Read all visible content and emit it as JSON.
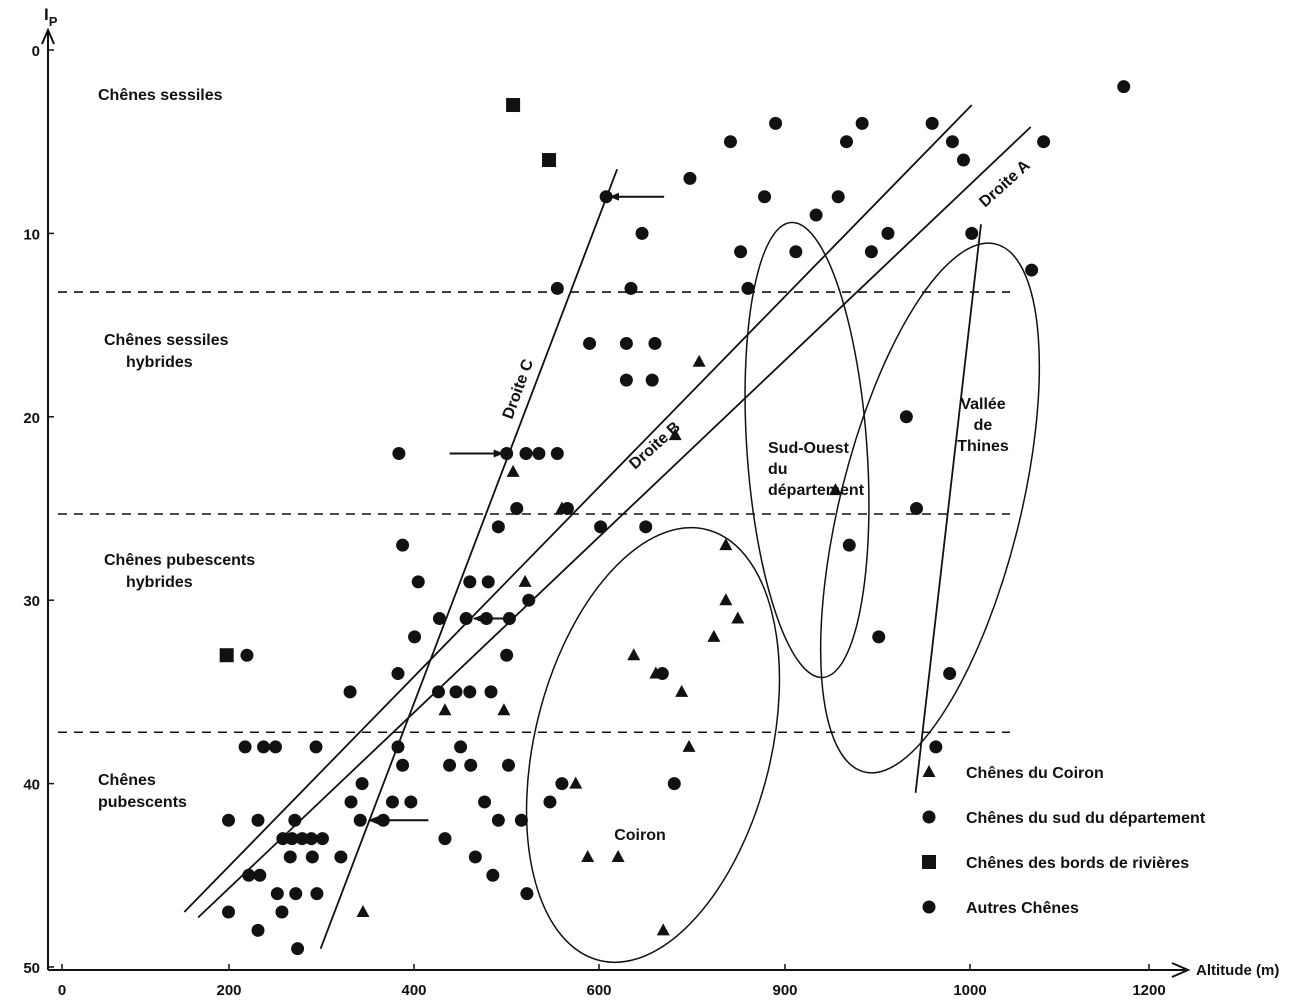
{
  "chart_data": {
    "type": "scatter",
    "xlabel": "Altitude (m)",
    "ylabel": "I",
    "ylabel_sub": "P",
    "x_ticks": [
      "0",
      "200",
      "400",
      "600",
      "900",
      "1000",
      "1200"
    ],
    "y_ticks": [
      "0",
      "10",
      "20",
      "30",
      "40",
      "50"
    ],
    "xlim": [
      0,
      1240
    ],
    "ylim": [
      0,
      50
    ],
    "y_inverted": true,
    "x_axis_spacing": "irregular",
    "zones": [
      {
        "label_lines": [
          "Chênes  sessiles"
        ],
        "upper_boundary": 13.2
      },
      {
        "label_lines": [
          "Chênes  sessiles",
          "hybrides"
        ],
        "upper_boundary": 25.3
      },
      {
        "label_lines": [
          "Chênes  pubescents",
          "hybrides"
        ],
        "upper_boundary": 37.2
      },
      {
        "label_lines": [
          "Chênes",
          "pubescents"
        ],
        "upper_boundary": null
      }
    ],
    "lines": [
      {
        "name": "Droite  A",
        "from": [
          163,
          47.3
        ],
        "to": [
          1067,
          4.2
        ]
      },
      {
        "name": "Droite  B",
        "from": [
          148,
          47.0
        ],
        "to": [
          1003,
          3.0
        ]
      },
      {
        "name": "Droite  C",
        "from": [
          296,
          49.0
        ],
        "to": [
          618,
          6.5
        ]
      },
      {
        "name": "",
        "from": [
          942,
          40.5
        ],
        "to": [
          1013,
          9.5
        ]
      }
    ],
    "regions": [
      {
        "label_lines": [
          "Coiron"
        ]
      },
      {
        "label_lines": [
          "Sud-Ouest",
          "du",
          "département"
        ]
      },
      {
        "label_lines": [
          "Vallée",
          "de",
          "Thines"
        ]
      }
    ],
    "arrows": [
      {
        "tip": [
          606,
          8
        ],
        "tail": [
          669,
          8
        ]
      },
      {
        "tip": [
          498,
          22
        ],
        "tail": [
          436,
          22
        ]
      },
      {
        "tip": [
          458,
          31
        ],
        "tail": [
          500,
          31
        ]
      },
      {
        "tip": [
          344,
          42
        ],
        "tail": [
          413,
          42
        ]
      }
    ],
    "legend": [
      {
        "marker": "triangle",
        "label": "Chênes  du  Coiron"
      },
      {
        "marker": "circle",
        "label": "Chênes  du  sud  du  département"
      },
      {
        "marker": "square",
        "label": "Chênes  des  bords  de  rivières"
      },
      {
        "marker": "circle",
        "label": "Autres  Chênes"
      }
    ],
    "series": [
      {
        "name": "Chênes du Coiron",
        "marker": "triangle",
        "points": [
          [
            505,
            23
          ],
          [
            558,
            25
          ],
          [
            518,
            29
          ],
          [
            431,
            36
          ],
          [
            495,
            36
          ],
          [
            573,
            40
          ],
          [
            586,
            44
          ],
          [
            619,
            44
          ],
          [
            342,
            47
          ],
          [
            668,
            48
          ],
          [
            636,
            33
          ],
          [
            660,
            34
          ],
          [
            688,
            35
          ],
          [
            681,
            21
          ],
          [
            707,
            17
          ],
          [
            736,
            30
          ],
          [
            723,
            32
          ],
          [
            749,
            31
          ],
          [
            696,
            38
          ],
          [
            736,
            27
          ],
          [
            855,
            24
          ]
        ]
      },
      {
        "name": "Chênes des bords de rivières",
        "marker": "square",
        "points": [
          [
            505,
            3
          ],
          [
            544,
            6
          ],
          [
            194,
            33
          ]
        ]
      },
      {
        "name": "Chênes du sud du département",
        "marker": "circle",
        "points": [
          [
            606,
            8
          ],
          [
            645,
            10
          ],
          [
            697,
            7
          ],
          [
            741,
            5
          ],
          [
            790,
            4
          ],
          [
            752,
            11
          ],
          [
            760,
            13
          ],
          [
            778,
            8
          ],
          [
            812,
            11
          ],
          [
            834,
            9
          ],
          [
            912,
            10
          ],
          [
            858,
            8
          ],
          [
            867,
            5
          ],
          [
            884,
            4
          ],
          [
            960,
            4
          ],
          [
            894,
            11
          ],
          [
            982,
            5
          ],
          [
            994,
            6
          ],
          [
            1003,
            10
          ],
          [
            1068,
            12
          ],
          [
            1081,
            5
          ],
          [
            1168,
            2
          ]
        ]
      },
      {
        "name": "Autres Chênes",
        "marker": "circle",
        "points": [
          [
            553,
            13
          ],
          [
            633,
            13
          ],
          [
            588,
            16
          ],
          [
            628,
            16
          ],
          [
            659,
            16
          ],
          [
            628,
            18
          ],
          [
            656,
            18
          ],
          [
            381,
            22
          ],
          [
            498,
            22
          ],
          [
            519,
            22
          ],
          [
            533,
            22
          ],
          [
            553,
            22
          ],
          [
            509,
            25
          ],
          [
            564,
            25
          ],
          [
            489,
            26
          ],
          [
            600,
            26
          ],
          [
            649,
            26
          ],
          [
            385,
            27
          ],
          [
            402,
            29
          ],
          [
            458,
            29
          ],
          [
            478,
            29
          ],
          [
            476,
            31
          ],
          [
            425,
            31
          ],
          [
            454,
            31
          ],
          [
            501,
            31
          ],
          [
            522,
            30
          ],
          [
            398,
            32
          ],
          [
            216,
            33
          ],
          [
            498,
            33
          ],
          [
            380,
            34
          ],
          [
            328,
            35
          ],
          [
            424,
            35
          ],
          [
            443,
            35
          ],
          [
            458,
            35
          ],
          [
            481,
            35
          ],
          [
            214,
            38
          ],
          [
            234,
            38
          ],
          [
            247,
            38
          ],
          [
            291,
            38
          ],
          [
            380,
            38
          ],
          [
            448,
            38
          ],
          [
            385,
            39
          ],
          [
            436,
            39
          ],
          [
            459,
            39
          ],
          [
            500,
            39
          ],
          [
            341,
            40
          ],
          [
            329,
            41
          ],
          [
            374,
            41
          ],
          [
            394,
            41
          ],
          [
            474,
            41
          ],
          [
            545,
            41
          ],
          [
            558,
            40
          ],
          [
            680,
            40
          ],
          [
            339,
            42
          ],
          [
            364,
            42
          ],
          [
            196,
            42
          ],
          [
            228,
            42
          ],
          [
            268,
            42
          ],
          [
            489,
            42
          ],
          [
            514,
            42
          ],
          [
            431,
            43
          ],
          [
            255,
            43
          ],
          [
            265,
            43
          ],
          [
            276,
            43
          ],
          [
            286,
            43
          ],
          [
            298,
            43
          ],
          [
            318,
            44
          ],
          [
            263,
            44
          ],
          [
            287,
            44
          ],
          [
            464,
            44
          ],
          [
            230,
            45
          ],
          [
            218,
            45
          ],
          [
            483,
            45
          ],
          [
            520,
            46
          ],
          [
            249,
            46
          ],
          [
            269,
            46
          ],
          [
            292,
            46
          ],
          [
            254,
            47
          ],
          [
            196,
            47
          ],
          [
            228,
            48
          ],
          [
            271,
            49
          ],
          [
            667,
            34
          ],
          [
            870,
            27
          ],
          [
            902,
            32
          ],
          [
            932,
            20
          ],
          [
            943,
            25
          ],
          [
            964,
            38
          ],
          [
            979,
            34
          ]
        ]
      }
    ]
  }
}
